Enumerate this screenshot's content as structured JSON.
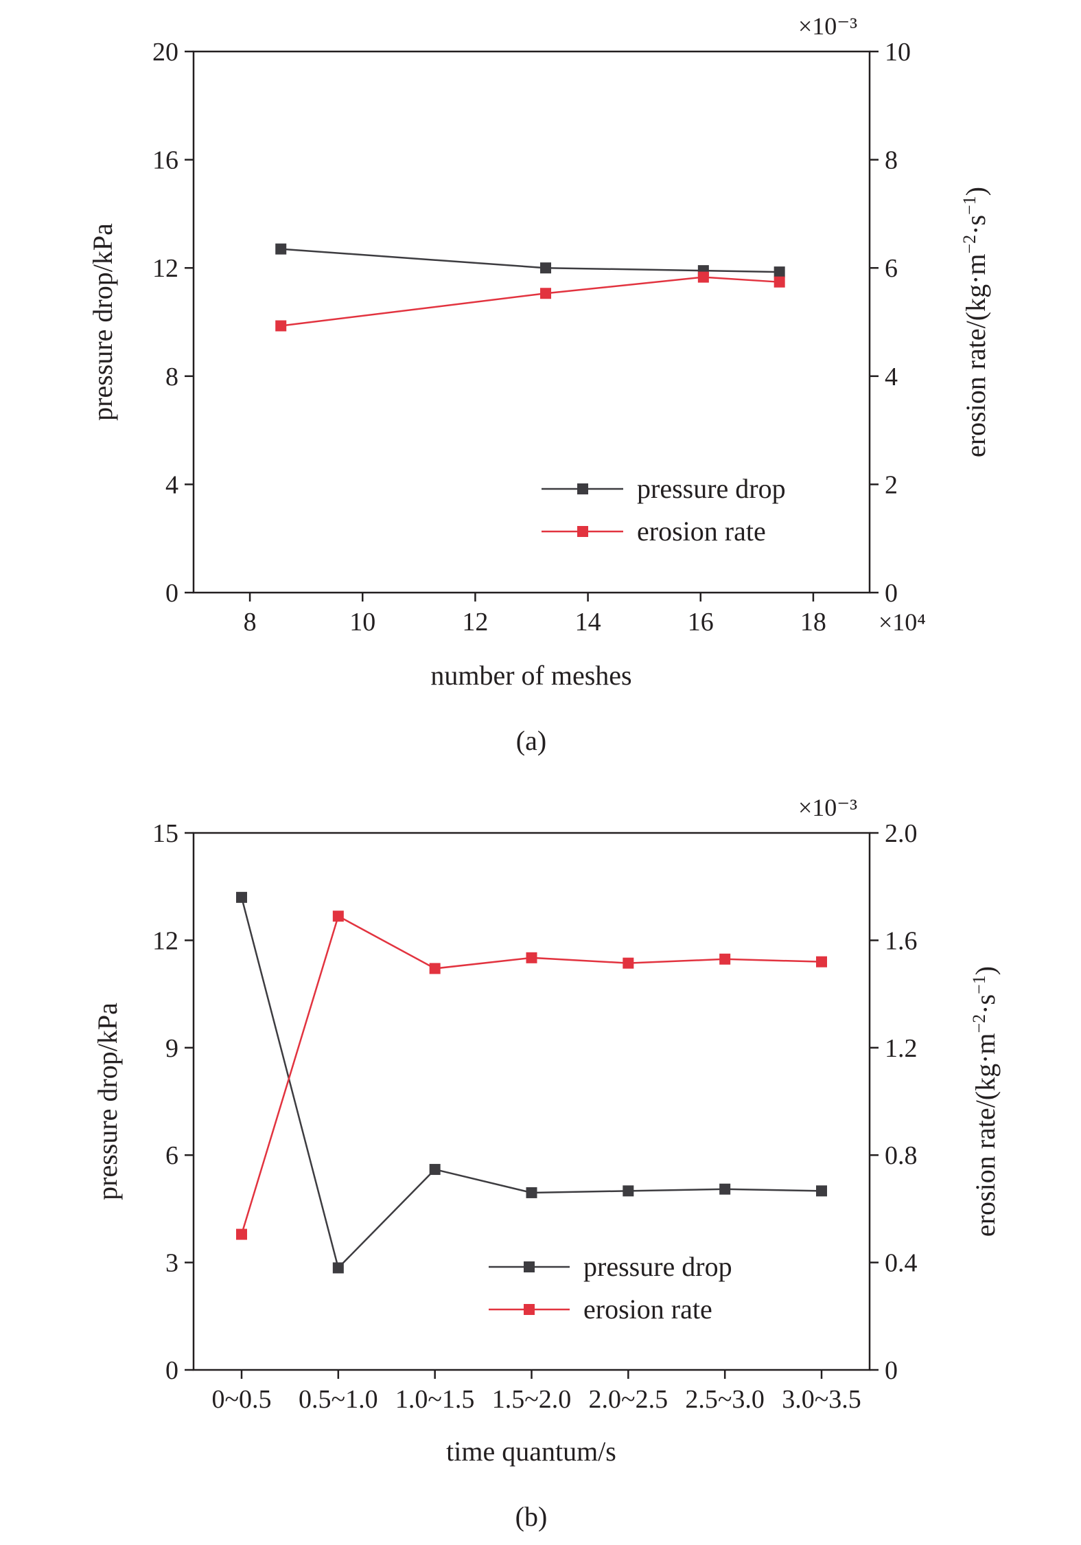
{
  "chart_data": [
    {
      "type": "line",
      "caption": "(a)",
      "xlabel": "number of meshes",
      "x_multiplier": "×10⁴",
      "ylabel_left": "pressure drop/kPa",
      "ylabel_right_parts": [
        "erosion rate/(kg·m",
        "−2",
        "·s",
        "−1",
        ")"
      ],
      "y_right_multiplier": "×10⁻³",
      "xlim": [
        7,
        19
      ],
      "xticks": [
        8,
        10,
        12,
        14,
        16,
        18
      ],
      "ylim_left": [
        0,
        20
      ],
      "yticks_left": [
        0,
        4,
        8,
        12,
        16,
        20
      ],
      "ylim_right": [
        0,
        10
      ],
      "yticks_right": [
        0,
        2,
        4,
        6,
        8,
        10
      ],
      "legend_position": "bottom-right",
      "series": [
        {
          "name": "pressure drop",
          "axis": "left",
          "color": "#3d3c40",
          "x": [
            8.55,
            13.25,
            16.05,
            17.4
          ],
          "y": [
            12.7,
            12.0,
            11.9,
            11.85
          ]
        },
        {
          "name": "erosion rate",
          "axis": "right",
          "color": "#e2333f",
          "x": [
            8.55,
            13.25,
            16.05,
            17.4
          ],
          "y": [
            4.93,
            5.53,
            5.83,
            5.74
          ]
        }
      ]
    },
    {
      "type": "line",
      "caption": "(b)",
      "xlabel": "time quantum/s",
      "ylabel_left": "pressure drop/kPa",
      "ylabel_right_parts": [
        "erosion rate/(kg·m",
        "−2",
        "·s",
        "−1",
        ")"
      ],
      "y_right_multiplier": "×10⁻³",
      "categories": [
        "0~0.5",
        "0.5~1.0",
        "1.0~1.5",
        "1.5~2.0",
        "2.0~2.5",
        "2.5~3.0",
        "3.0~3.5"
      ],
      "ylim_left": [
        0,
        15
      ],
      "yticks_left": [
        0,
        3,
        6,
        9,
        12,
        15
      ],
      "ylim_right": [
        0,
        2.0
      ],
      "yticks_right": [
        "0",
        "0.4",
        "0.8",
        "1.2",
        "1.6",
        "2.0"
      ],
      "legend_position": "bottom-right",
      "series": [
        {
          "name": "pressure drop",
          "axis": "left",
          "color": "#3d3c40",
          "values": [
            13.2,
            2.85,
            5.6,
            4.95,
            5.0,
            5.05,
            5.0
          ]
        },
        {
          "name": "erosion rate",
          "axis": "right",
          "color": "#e2333f",
          "values": [
            0.505,
            1.69,
            1.495,
            1.535,
            1.515,
            1.53,
            1.52
          ]
        }
      ]
    }
  ]
}
